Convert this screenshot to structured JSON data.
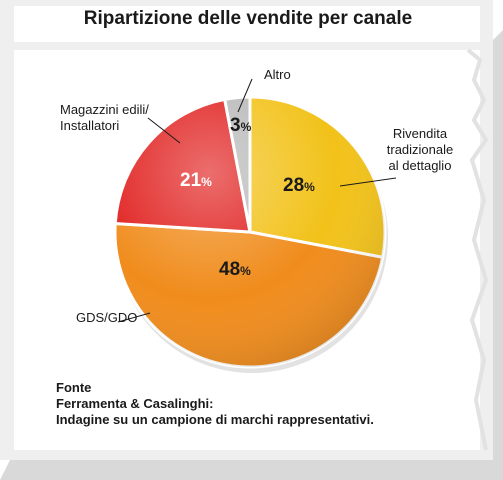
{
  "chart_data": {
    "type": "pie",
    "title": "Ripartizione delle vendite per canale",
    "slices": [
      {
        "label": "Rivendita tradizionale al dettaglio",
        "value": 28,
        "value_label": "28",
        "unit": "%",
        "color": "#f2c21a"
      },
      {
        "label": "GDS/GDO",
        "value": 48,
        "value_label": "48",
        "unit": "%",
        "color": "#f08c1c"
      },
      {
        "label": "Magazzini edili/ Installatori",
        "value": 21,
        "value_label": "21",
        "unit": "%",
        "color": "#e0201e"
      },
      {
        "label": "Altro",
        "value": 3,
        "value_label": "3",
        "unit": "%",
        "color": "#b8b8b8"
      }
    ]
  },
  "labels": {
    "altro": "Altro",
    "magazzini_line1": "Magazzini edili/",
    "magazzini_line2": "Installatori",
    "rivendita_line1": "Rivendita",
    "rivendita_line2": "tradizionale",
    "rivendita_line3": "al dettaglio",
    "gds": "GDS/GDO"
  },
  "source": {
    "line1": "Fonte",
    "line2": "Ferramenta & Casalinghi:",
    "line3": "Indagine su un campione di marchi rappresentativi."
  }
}
